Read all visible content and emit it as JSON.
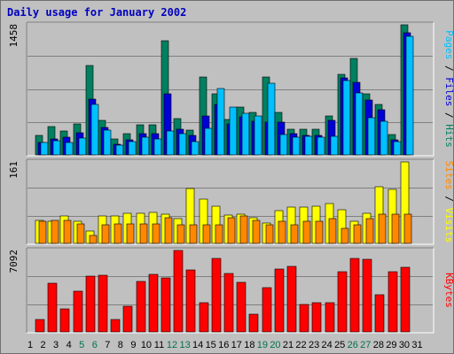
{
  "title": "Daily usage for January 2002",
  "colors": {
    "background": "#c0c0c0",
    "panel": "#c0c0c0",
    "grid": "#808080",
    "hits": "#008060",
    "files": "#0000d8",
    "pages": "#00c0ff",
    "visits": "#ffff00",
    "sites": "#ff8800",
    "kbytes": "#ff0000",
    "weekend_label": "#007050",
    "weekday_label": "#000000"
  },
  "chart_data": [
    {
      "type": "bar",
      "name": "hits-files-pages",
      "ymax_label": "1458",
      "ymax": 1458,
      "legend": [
        {
          "text": "Pages",
          "color": "#00c0ff"
        },
        {
          "text": " / ",
          "color": "#000000"
        },
        {
          "text": "Files",
          "color": "#0000d8"
        },
        {
          "text": " / ",
          "color": "#000000"
        },
        {
          "text": "Hits",
          "color": "#008060"
        }
      ],
      "series": [
        {
          "name": "Hits",
          "values": [
            215,
            320,
            270,
            345,
            1000,
            385,
            175,
            235,
            335,
            335,
            1275,
            405,
            280,
            875,
            685,
            400,
            540,
            475,
            870,
            480,
            285,
            285,
            285,
            435,
            905,
            1080,
            680,
            565,
            225,
            1458
          ]
        },
        {
          "name": "Files",
          "values": [
            135,
            175,
            195,
            245,
            620,
            305,
            120,
            165,
            240,
            240,
            680,
            290,
            215,
            440,
            565,
            350,
            430,
            375,
            365,
            365,
            235,
            215,
            215,
            385,
            860,
            815,
            610,
            505,
            165,
            1370
          ]
        },
        {
          "name": "Pages",
          "values": [
            135,
            155,
            135,
            185,
            570,
            275,
            105,
            145,
            195,
            175,
            270,
            235,
            145,
            300,
            740,
            540,
            465,
            435,
            800,
            230,
            195,
            210,
            195,
            205,
            830,
            695,
            415,
            375,
            145,
            1325
          ]
        }
      ]
    },
    {
      "type": "bar",
      "name": "visits-sites",
      "ymax_label": "161",
      "ymax": 161,
      "legend": [
        {
          "text": "Sites",
          "color": "#ff8800"
        },
        {
          "text": " / ",
          "color": "#000000"
        },
        {
          "text": "Visits",
          "color": "#ffff00"
        }
      ],
      "series": [
        {
          "name": "Visits",
          "values": [
            45,
            44,
            55,
            44,
            25,
            55,
            55,
            59,
            59,
            61,
            57,
            49,
            108,
            88,
            74,
            56,
            58,
            51,
            41,
            65,
            71,
            71,
            73,
            78,
            67,
            44,
            60,
            112,
            107,
            161
          ]
        },
        {
          "name": "Sites",
          "values": [
            44,
            45,
            45,
            39,
            15,
            37,
            39,
            38,
            38,
            38,
            50,
            37,
            37,
            37,
            37,
            51,
            54,
            45,
            37,
            44,
            37,
            44,
            44,
            49,
            29,
            37,
            49,
            57,
            57,
            57
          ]
        }
      ]
    },
    {
      "type": "bar",
      "name": "kbytes",
      "ymax_label": "7092",
      "ymax": 7092,
      "legend": [
        {
          "text": "KBytes",
          "color": "#ff0000"
        }
      ],
      "series": [
        {
          "name": "KBytes",
          "values": [
            1050,
            4260,
            2030,
            3520,
            4860,
            4940,
            1050,
            2260,
            4360,
            4990,
            4710,
            7092,
            5420,
            2520,
            6420,
            5060,
            4330,
            1560,
            3880,
            5450,
            5710,
            2420,
            2530,
            2580,
            5230,
            6420,
            6350,
            3220,
            5260,
            5600
          ]
        }
      ]
    }
  ],
  "x_axis": {
    "categories": [
      "1",
      "2",
      "3",
      "4",
      "5",
      "6",
      "7",
      "8",
      "9",
      "10",
      "11",
      "12",
      "13",
      "14",
      "15",
      "16",
      "17",
      "18",
      "19",
      "20",
      "21",
      "22",
      "23",
      "24",
      "25",
      "26",
      "27",
      "28",
      "29",
      "30",
      "31"
    ],
    "weekend_days": [
      "5",
      "6",
      "12",
      "13",
      "19",
      "20",
      "26",
      "27"
    ]
  }
}
